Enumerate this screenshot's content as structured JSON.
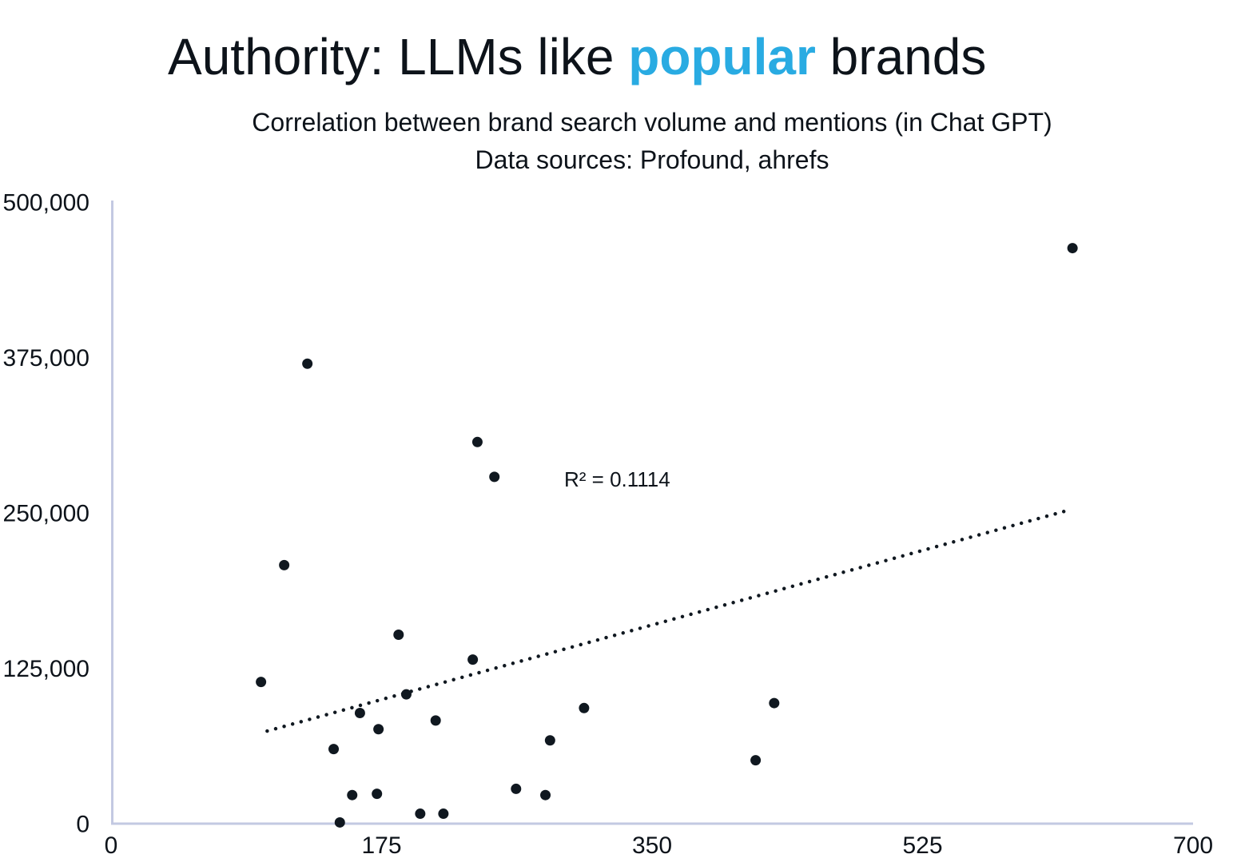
{
  "title": {
    "prefix": "Authority: LLMs like ",
    "highlight": "popular",
    "suffix": " brands"
  },
  "subtitle": {
    "line1": "Correlation between brand search volume and mentions (in Chat GPT)",
    "line2": "Data sources: Profound, ahrefs"
  },
  "colors": {
    "title_text": "#0D131A",
    "highlight_blue": "#29ABE2",
    "point_dark": "#101820",
    "axis_lavender": "#C3C9E2"
  },
  "chart_data": {
    "type": "scatter",
    "title": "Authority: LLMs like popular brands",
    "subtitle": "Correlation between brand search volume and mentions (in Chat GPT); Data sources: Profound, ahrefs",
    "xlabel": "",
    "ylabel": "",
    "xlim": [
      0,
      700
    ],
    "ylim": [
      0,
      500000
    ],
    "x_ticks": [
      0,
      175,
      350,
      525,
      700
    ],
    "x_tick_labels": [
      "0",
      "175",
      "350",
      "525",
      "700"
    ],
    "y_ticks": [
      0,
      125000,
      250000,
      375000,
      500000
    ],
    "y_tick_labels": [
      "0",
      "125,000",
      "250,000",
      "375,000",
      "500,000"
    ],
    "grid": false,
    "legend": false,
    "points": [
      [
        622,
        463000
      ],
      [
        127,
        370000
      ],
      [
        237,
        307000
      ],
      [
        248,
        279000
      ],
      [
        112,
        208000
      ],
      [
        186,
        152000
      ],
      [
        234,
        132000
      ],
      [
        97,
        114000
      ],
      [
        191,
        104000
      ],
      [
        429,
        97000
      ],
      [
        306,
        93000
      ],
      [
        161,
        89000
      ],
      [
        210,
        83000
      ],
      [
        173,
        76000
      ],
      [
        284,
        67000
      ],
      [
        144,
        60000
      ],
      [
        417,
        51000
      ],
      [
        262,
        28000
      ],
      [
        172,
        24000
      ],
      [
        156,
        23000
      ],
      [
        281,
        23000
      ],
      [
        215,
        8000
      ],
      [
        200,
        8000
      ],
      [
        148,
        1000
      ]
    ],
    "trendline": {
      "x1": 101,
      "y1": 74500,
      "x2": 619,
      "y2": 252000,
      "style": "dotted"
    },
    "r_squared": 0.1114,
    "r_squared_label": "R² = 0.1114"
  }
}
